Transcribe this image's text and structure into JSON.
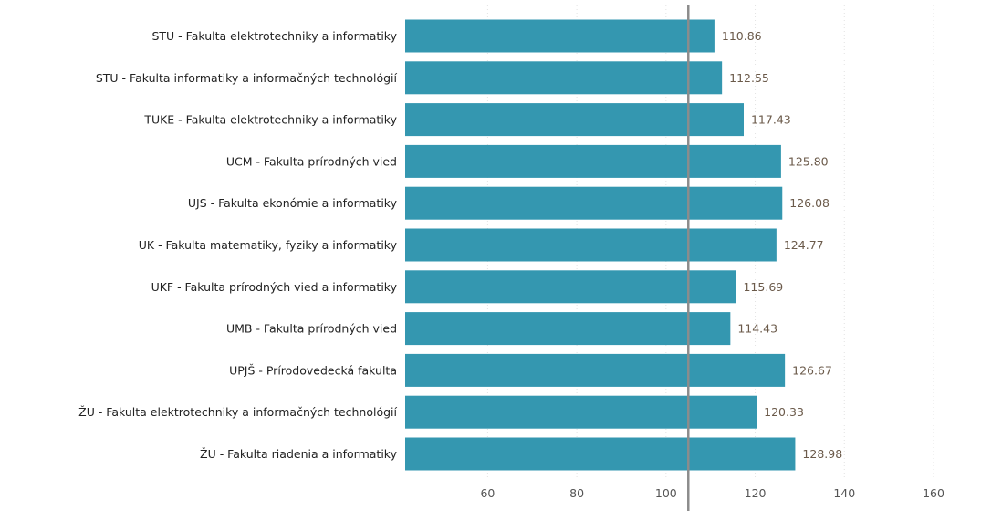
{
  "colors": {
    "bar": "#3497b0",
    "reference_line": "#8c8c8c",
    "label_text": "#222222",
    "value_text": "#6b5a4a",
    "tick_text": "#555555",
    "grid": "#e3e3e3"
  },
  "chart_data": {
    "type": "bar",
    "orientation": "horizontal",
    "title": "",
    "xlabel": "",
    "ylabel": "",
    "categories": [
      "STU - Fakulta elektrotechniky a informatiky",
      "STU - Fakulta informatiky a informačných technológií",
      "TUKE - Fakulta elektrotechniky a informatiky",
      "UCM - Fakulta prírodných vied",
      "UJS - Fakulta ekonómie a informatiky",
      "UK - Fakulta matematiky, fyziky a informatiky",
      "UKF - Fakulta prírodných vied a informatiky",
      "UMB - Fakulta prírodných vied",
      "UPJŠ - Prírodovedecká fakulta",
      "ŽU - Fakulta elektrotechniky a informačných technológií",
      "ŽU - Fakulta riadenia a informatiky"
    ],
    "values": [
      110.86,
      112.55,
      117.43,
      125.8,
      126.08,
      124.77,
      115.69,
      114.43,
      126.67,
      120.33,
      128.98
    ],
    "value_labels": [
      "110.86",
      "112.55",
      "117.43",
      "125.80",
      "126.08",
      "124.77",
      "115.69",
      "114.43",
      "126.67",
      "120.33",
      "128.98"
    ],
    "xlim": [
      41.5,
      160
    ],
    "x_ticks": [
      60,
      80,
      100,
      120,
      140,
      160
    ],
    "x_tick_labels": [
      "60",
      "80",
      "100",
      "120",
      "140",
      "160"
    ],
    "reference_line": 105,
    "grid": true,
    "grid_style": "dotted-vertical",
    "legend": "none"
  }
}
